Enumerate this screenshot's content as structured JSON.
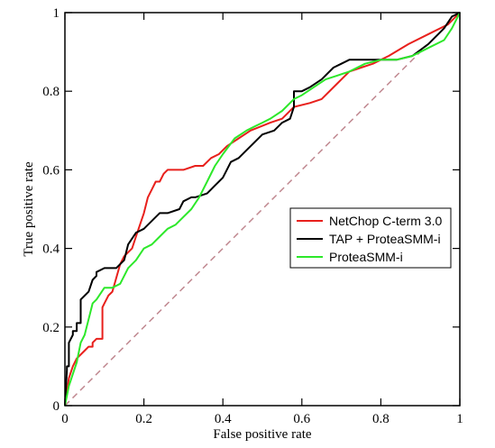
{
  "chart_data": {
    "type": "line",
    "xlabel": "False positive rate",
    "ylabel": "True positive rate",
    "xlim": [
      0,
      1
    ],
    "ylim": [
      0,
      1
    ],
    "xticks": [
      {
        "value": 0,
        "label": "0"
      },
      {
        "value": 0.2,
        "label": "0.2"
      },
      {
        "value": 0.4,
        "label": "0.4"
      },
      {
        "value": 0.6,
        "label": "0.6"
      },
      {
        "value": 0.8,
        "label": "0.8"
      },
      {
        "value": 1,
        "label": "1"
      }
    ],
    "yticks": [
      {
        "value": 0,
        "label": "0"
      },
      {
        "value": 0.2,
        "label": "0.2"
      },
      {
        "value": 0.4,
        "label": "0.4"
      },
      {
        "value": 0.6,
        "label": "0.6"
      },
      {
        "value": 0.8,
        "label": "0.8"
      },
      {
        "value": 1,
        "label": "1"
      }
    ],
    "grid": false,
    "legend_position": "right",
    "diagonal": {
      "color": "#c08890",
      "style": "dashed",
      "x": [
        0,
        1
      ],
      "y": [
        0,
        1
      ]
    },
    "series": [
      {
        "name": "NetChop C-term 3.0",
        "color": "#e8201c",
        "x": [
          0,
          0.01,
          0.02,
          0.03,
          0.05,
          0.06,
          0.07,
          0.07,
          0.08,
          0.095,
          0.095,
          0.1,
          0.11,
          0.12,
          0.14,
          0.15,
          0.17,
          0.18,
          0.19,
          0.2,
          0.21,
          0.22,
          0.23,
          0.24,
          0.25,
          0.26,
          0.27,
          0.3,
          0.33,
          0.35,
          0.37,
          0.39,
          0.41,
          0.44,
          0.47,
          0.52,
          0.55,
          0.58,
          0.62,
          0.65,
          0.69,
          0.72,
          0.75,
          0.78,
          0.82,
          0.87,
          0.93,
          0.97,
          1.0
        ],
        "y": [
          0,
          0.07,
          0.1,
          0.12,
          0.14,
          0.15,
          0.15,
          0.16,
          0.17,
          0.17,
          0.25,
          0.26,
          0.28,
          0.29,
          0.36,
          0.38,
          0.4,
          0.43,
          0.46,
          0.49,
          0.53,
          0.55,
          0.57,
          0.57,
          0.59,
          0.6,
          0.6,
          0.6,
          0.61,
          0.61,
          0.63,
          0.64,
          0.66,
          0.68,
          0.7,
          0.72,
          0.73,
          0.76,
          0.77,
          0.78,
          0.82,
          0.85,
          0.86,
          0.87,
          0.89,
          0.92,
          0.95,
          0.97,
          1.0
        ]
      },
      {
        "name": "TAP + ProteaSMM-i",
        "color": "#000000",
        "x": [
          0,
          0.005,
          0.005,
          0.01,
          0.01,
          0.02,
          0.02,
          0.03,
          0.03,
          0.04,
          0.04,
          0.06,
          0.07,
          0.08,
          0.08,
          0.1,
          0.13,
          0.15,
          0.16,
          0.18,
          0.2,
          0.22,
          0.24,
          0.26,
          0.29,
          0.3,
          0.32,
          0.33,
          0.36,
          0.37,
          0.38,
          0.4,
          0.42,
          0.44,
          0.46,
          0.48,
          0.5,
          0.53,
          0.55,
          0.57,
          0.58,
          0.58,
          0.6,
          0.62,
          0.65,
          0.68,
          0.7,
          0.72,
          0.76,
          0.8,
          0.84,
          0.88,
          0.92,
          0.96,
          0.98,
          1.0
        ],
        "y": [
          0,
          0.09,
          0.1,
          0.1,
          0.16,
          0.18,
          0.19,
          0.19,
          0.21,
          0.21,
          0.27,
          0.29,
          0.32,
          0.33,
          0.34,
          0.35,
          0.35,
          0.37,
          0.41,
          0.44,
          0.45,
          0.47,
          0.49,
          0.49,
          0.5,
          0.52,
          0.53,
          0.53,
          0.54,
          0.55,
          0.56,
          0.58,
          0.62,
          0.63,
          0.65,
          0.67,
          0.69,
          0.7,
          0.72,
          0.73,
          0.76,
          0.8,
          0.8,
          0.81,
          0.83,
          0.86,
          0.87,
          0.88,
          0.88,
          0.88,
          0.88,
          0.89,
          0.92,
          0.96,
          0.99,
          1.0
        ]
      },
      {
        "name": "ProteaSMM-i",
        "color": "#2de82a",
        "x": [
          0,
          0.01,
          0.03,
          0.04,
          0.05,
          0.06,
          0.07,
          0.08,
          0.1,
          0.12,
          0.14,
          0.16,
          0.18,
          0.2,
          0.22,
          0.24,
          0.26,
          0.28,
          0.3,
          0.32,
          0.34,
          0.36,
          0.38,
          0.4,
          0.43,
          0.46,
          0.48,
          0.5,
          0.52,
          0.55,
          0.58,
          0.6,
          0.63,
          0.66,
          0.69,
          0.72,
          0.76,
          0.8,
          0.84,
          0.88,
          0.92,
          0.96,
          0.98,
          1.0
        ],
        "y": [
          0,
          0.05,
          0.11,
          0.16,
          0.18,
          0.22,
          0.26,
          0.27,
          0.3,
          0.3,
          0.31,
          0.35,
          0.37,
          0.4,
          0.41,
          0.43,
          0.45,
          0.46,
          0.48,
          0.5,
          0.53,
          0.57,
          0.61,
          0.64,
          0.68,
          0.7,
          0.71,
          0.72,
          0.73,
          0.75,
          0.78,
          0.79,
          0.81,
          0.83,
          0.84,
          0.85,
          0.87,
          0.88,
          0.88,
          0.89,
          0.91,
          0.93,
          0.96,
          1.0
        ]
      }
    ]
  }
}
